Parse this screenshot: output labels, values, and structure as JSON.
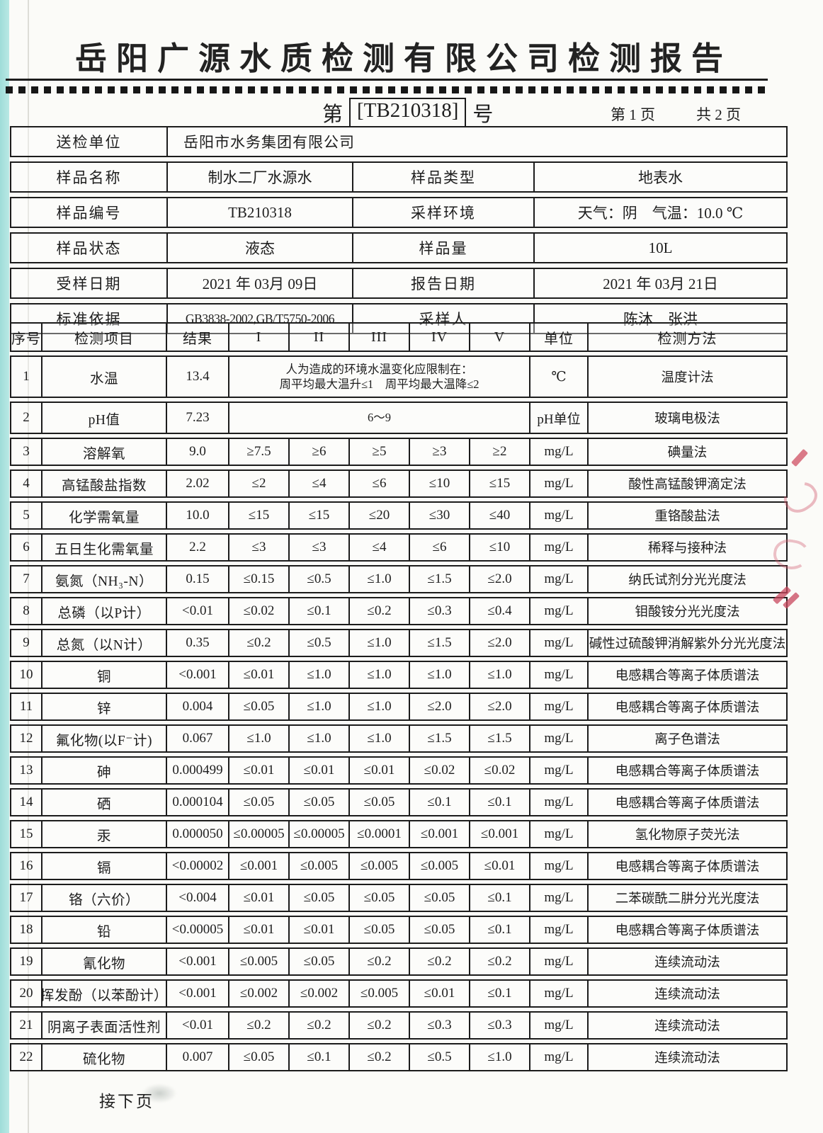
{
  "header": {
    "title": "岳阳广源水质检测有限公司检测报告",
    "doc_no_prefix": "第",
    "doc_no": "[TB210318]",
    "doc_no_suffix": "号",
    "page_current": "第 1 页",
    "page_total": "共 2 页"
  },
  "info": {
    "rows": [
      {
        "label": "送检单位",
        "value": "岳阳市水务集团有限公司",
        "span": true
      },
      {
        "label": "样品名称",
        "value": "制水二厂水源水",
        "label2": "样品类型",
        "value2": "地表水"
      },
      {
        "label": "样品编号",
        "value": "TB210318",
        "label2": "采样环境",
        "value2": "天气：阴　气温：10.0 ℃"
      },
      {
        "label": "样品状态",
        "value": "液态",
        "label2": "样品量",
        "value2": "10L"
      },
      {
        "label": "受样日期",
        "value": "2021 年 03月 09日",
        "label2": "报告日期",
        "value2": "2021 年 03月 21日"
      },
      {
        "label": "标准依据",
        "value": "GB3838-2002,GB/T5750-2006",
        "label2": "采样人",
        "value2": "陈沐　张洪"
      }
    ]
  },
  "table": {
    "header": {
      "no": "序号",
      "item": "检测项目",
      "result": "结果",
      "levels": [
        "I",
        "II",
        "III",
        "IV",
        "V"
      ],
      "unit": "单位",
      "method": "检测方法"
    },
    "rows": [
      {
        "no": "1",
        "item": "水温",
        "result": "13.4",
        "merged": [
          "人为造成的环境水温变化应限制在：",
          "周平均最大温升≤1　周平均最大温降≤2"
        ],
        "unit": "℃",
        "method": "温度计法"
      },
      {
        "no": "2",
        "item": "pH值",
        "result": "7.23",
        "merged": [
          "6～9"
        ],
        "unit": "pH单位",
        "method": "玻璃电极法"
      },
      {
        "no": "3",
        "item": "溶解氧",
        "result": "9.0",
        "limits": [
          "≥7.5",
          "≥6",
          "≥5",
          "≥3",
          "≥2"
        ],
        "unit": "mg/L",
        "method": "碘量法"
      },
      {
        "no": "4",
        "item": "高锰酸盐指数",
        "result": "2.02",
        "limits": [
          "≤2",
          "≤4",
          "≤6",
          "≤10",
          "≤15"
        ],
        "unit": "mg/L",
        "method": "酸性高锰酸钾滴定法"
      },
      {
        "no": "5",
        "item": "化学需氧量",
        "result": "10.0",
        "limits": [
          "≤15",
          "≤15",
          "≤20",
          "≤30",
          "≤40"
        ],
        "unit": "mg/L",
        "method": "重铬酸盐法"
      },
      {
        "no": "6",
        "item": "五日生化需氧量",
        "result": "2.2",
        "limits": [
          "≤3",
          "≤3",
          "≤4",
          "≤6",
          "≤10"
        ],
        "unit": "mg/L",
        "method": "稀释与接种法"
      },
      {
        "no": "7",
        "item": "氨氮（NH₃-N）",
        "result": "0.15",
        "limits": [
          "≤0.15",
          "≤0.5",
          "≤1.0",
          "≤1.5",
          "≤2.0"
        ],
        "unit": "mg/L",
        "method": "纳氏试剂分光光度法"
      },
      {
        "no": "8",
        "item": "总磷（以P计）",
        "result": "<0.01",
        "limits": [
          "≤0.02",
          "≤0.1",
          "≤0.2",
          "≤0.3",
          "≤0.4"
        ],
        "unit": "mg/L",
        "method": "钼酸铵分光光度法"
      },
      {
        "no": "9",
        "item": "总氮（以N计）",
        "result": "0.35",
        "limits": [
          "≤0.2",
          "≤0.5",
          "≤1.0",
          "≤1.5",
          "≤2.0"
        ],
        "unit": "mg/L",
        "method": "碱性过硫酸钾消解紫外分光光度法"
      },
      {
        "no": "10",
        "item": "铜",
        "result": "<0.001",
        "limits": [
          "≤0.01",
          "≤1.0",
          "≤1.0",
          "≤1.0",
          "≤1.0"
        ],
        "unit": "mg/L",
        "method": "电感耦合等离子体质谱法"
      },
      {
        "no": "11",
        "item": "锌",
        "result": "0.004",
        "limits": [
          "≤0.05",
          "≤1.0",
          "≤1.0",
          "≤2.0",
          "≤2.0"
        ],
        "unit": "mg/L",
        "method": "电感耦合等离子体质谱法"
      },
      {
        "no": "12",
        "item": "氟化物(以F⁻计)",
        "result": "0.067",
        "limits": [
          "≤1.0",
          "≤1.0",
          "≤1.0",
          "≤1.5",
          "≤1.5"
        ],
        "unit": "mg/L",
        "method": "离子色谱法"
      },
      {
        "no": "13",
        "item": "砷",
        "result": "0.000499",
        "limits": [
          "≤0.01",
          "≤0.01",
          "≤0.01",
          "≤0.02",
          "≤0.02"
        ],
        "unit": "mg/L",
        "method": "电感耦合等离子体质谱法"
      },
      {
        "no": "14",
        "item": "硒",
        "result": "0.000104",
        "limits": [
          "≤0.05",
          "≤0.05",
          "≤0.05",
          "≤0.1",
          "≤0.1"
        ],
        "unit": "mg/L",
        "method": "电感耦合等离子体质谱法"
      },
      {
        "no": "15",
        "item": "汞",
        "result": "0.000050",
        "limits": [
          "≤0.00005",
          "≤0.00005",
          "≤0.0001",
          "≤0.001",
          "≤0.001"
        ],
        "unit": "mg/L",
        "method": "氢化物原子荧光法"
      },
      {
        "no": "16",
        "item": "镉",
        "result": "<0.00002",
        "limits": [
          "≤0.001",
          "≤0.005",
          "≤0.005",
          "≤0.005",
          "≤0.01"
        ],
        "unit": "mg/L",
        "method": "电感耦合等离子体质谱法"
      },
      {
        "no": "17",
        "item": "铬（六价）",
        "result": "<0.004",
        "limits": [
          "≤0.01",
          "≤0.05",
          "≤0.05",
          "≤0.05",
          "≤0.1"
        ],
        "unit": "mg/L",
        "method": "二苯碳酰二肼分光光度法"
      },
      {
        "no": "18",
        "item": "铅",
        "result": "<0.00005",
        "limits": [
          "≤0.01",
          "≤0.01",
          "≤0.05",
          "≤0.05",
          "≤0.1"
        ],
        "unit": "mg/L",
        "method": "电感耦合等离子体质谱法"
      },
      {
        "no": "19",
        "item": "氰化物",
        "result": "<0.001",
        "limits": [
          "≤0.005",
          "≤0.05",
          "≤0.2",
          "≤0.2",
          "≤0.2"
        ],
        "unit": "mg/L",
        "method": "连续流动法"
      },
      {
        "no": "20",
        "item": "挥发酚（以苯酚计）",
        "result": "<0.001",
        "limits": [
          "≤0.002",
          "≤0.002",
          "≤0.005",
          "≤0.01",
          "≤0.1"
        ],
        "unit": "mg/L",
        "method": "连续流动法"
      },
      {
        "no": "21",
        "item": "阴离子表面活性剂",
        "result": "<0.01",
        "limits": [
          "≤0.2",
          "≤0.2",
          "≤0.2",
          "≤0.3",
          "≤0.3"
        ],
        "unit": "mg/L",
        "method": "连续流动法"
      },
      {
        "no": "22",
        "item": "硫化物",
        "result": "0.007",
        "limits": [
          "≤0.05",
          "≤0.1",
          "≤0.2",
          "≤0.5",
          "≤1.0"
        ],
        "unit": "mg/L",
        "method": "连续流动法"
      }
    ]
  },
  "footer": {
    "continue_note": "接下页"
  },
  "colors": {
    "scanner_bed": "#abe2de",
    "stamp_red": "#cf4f63"
  }
}
